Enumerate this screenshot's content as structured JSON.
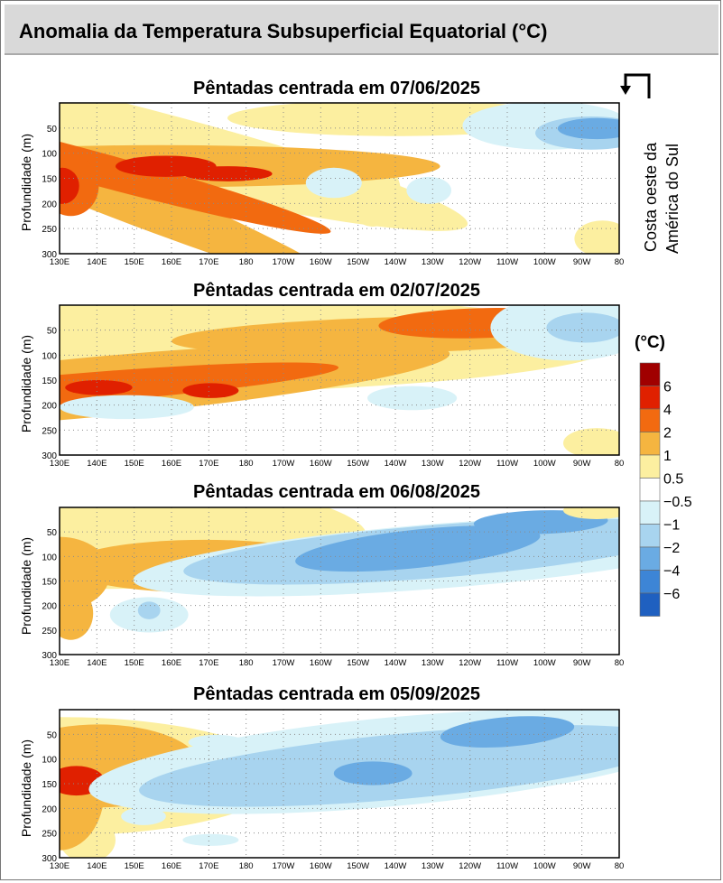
{
  "title": "Anomalia da Temperatura Subsuperficial Equatorial (°C)",
  "annotation": {
    "line1": "Costa oeste da",
    "line2": "América do Sul"
  },
  "legend": {
    "unit": "(°C)",
    "labels": [
      "6",
      "4",
      "2",
      "1",
      "0.5",
      "−0.5",
      "−1",
      "−2",
      "−4",
      "−6"
    ],
    "colors": [
      "#a00000",
      "#e02000",
      "#f26a10",
      "#f5b540",
      "#fcefa0",
      "#ffffff",
      "#d8f2f8",
      "#a8d4ef",
      "#6aabe3",
      "#3d85d6",
      "#1f60c0"
    ]
  },
  "chart_data": [
    {
      "type": "heatmap",
      "title": "Pêntadas centrada em 07/06/2025",
      "ylabel": "Profundidade (m)",
      "xticks": [
        "130E",
        "140E",
        "150E",
        "160E",
        "170E",
        "180",
        "170W",
        "160W",
        "150W",
        "140W",
        "130W",
        "120W",
        "110W",
        "100W",
        "90W",
        "80"
      ],
      "yticks": [
        "50",
        "100",
        "150",
        "200",
        "250",
        "300"
      ],
      "ylim": [
        0,
        300
      ],
      "features": [
        {
          "lon": 130,
          "depth": 160,
          "value": 4
        },
        {
          "lon": 155,
          "depth": 125,
          "value": 4
        },
        {
          "lon": 170,
          "depth": 135,
          "value": 4
        },
        {
          "lon": 180,
          "depth": 120,
          "value": 2
        },
        {
          "lon": 260,
          "depth": 50,
          "value": -2
        },
        {
          "lon": 275,
          "depth": 40,
          "value": -2
        }
      ]
    },
    {
      "type": "heatmap",
      "title": "Pêntadas centrada em 02/07/2025",
      "ylabel": "Profundidade (m)",
      "xticks": [
        "130E",
        "140E",
        "150E",
        "160E",
        "170E",
        "180",
        "170W",
        "160W",
        "150W",
        "140W",
        "130W",
        "120W",
        "110W",
        "100W",
        "90W",
        "80"
      ],
      "yticks": [
        "50",
        "100",
        "150",
        "200",
        "250",
        "300"
      ],
      "ylim": [
        0,
        300
      ],
      "features": [
        {
          "lon": 135,
          "depth": 135,
          "value": 4
        },
        {
          "lon": 170,
          "depth": 135,
          "value": 4
        },
        {
          "lon": 255,
          "depth": 40,
          "value": 4
        },
        {
          "lon": 270,
          "depth": 40,
          "value": -2
        }
      ]
    },
    {
      "type": "heatmap",
      "title": "Pêntadas centrada em 06/08/2025",
      "ylabel": "Profundidade (m)",
      "xticks": [
        "130E",
        "140E",
        "150E",
        "160E",
        "170E",
        "180",
        "170W",
        "160W",
        "150W",
        "140W",
        "130W",
        "120W",
        "110W",
        "100W",
        "90W",
        "80"
      ],
      "yticks": [
        "50",
        "100",
        "150",
        "200",
        "250",
        "300"
      ],
      "ylim": [
        0,
        300
      ],
      "features": [
        {
          "lon": 130,
          "depth": 130,
          "value": 2
        },
        {
          "lon": 168,
          "depth": 120,
          "value": 2
        },
        {
          "lon": 225,
          "depth": 90,
          "value": -2
        },
        {
          "lon": 255,
          "depth": 40,
          "value": -2
        }
      ]
    },
    {
      "type": "heatmap",
      "title": "Pêntadas centrada em 05/09/2025",
      "ylabel": "Profundidade (m)",
      "xticks": [
        "130E",
        "140E",
        "150E",
        "160E",
        "170E",
        "180",
        "170W",
        "160W",
        "150W",
        "140W",
        "130W",
        "120W",
        "110W",
        "100W",
        "90W",
        "80"
      ],
      "yticks": [
        "50",
        "100",
        "150",
        "200",
        "250",
        "300"
      ],
      "ylim": [
        0,
        300
      ],
      "features": [
        {
          "lon": 132,
          "depth": 135,
          "value": 4
        },
        {
          "lon": 150,
          "depth": 110,
          "value": 2
        },
        {
          "lon": 215,
          "depth": 130,
          "value": -2
        },
        {
          "lon": 250,
          "depth": 60,
          "value": -2
        }
      ]
    }
  ]
}
